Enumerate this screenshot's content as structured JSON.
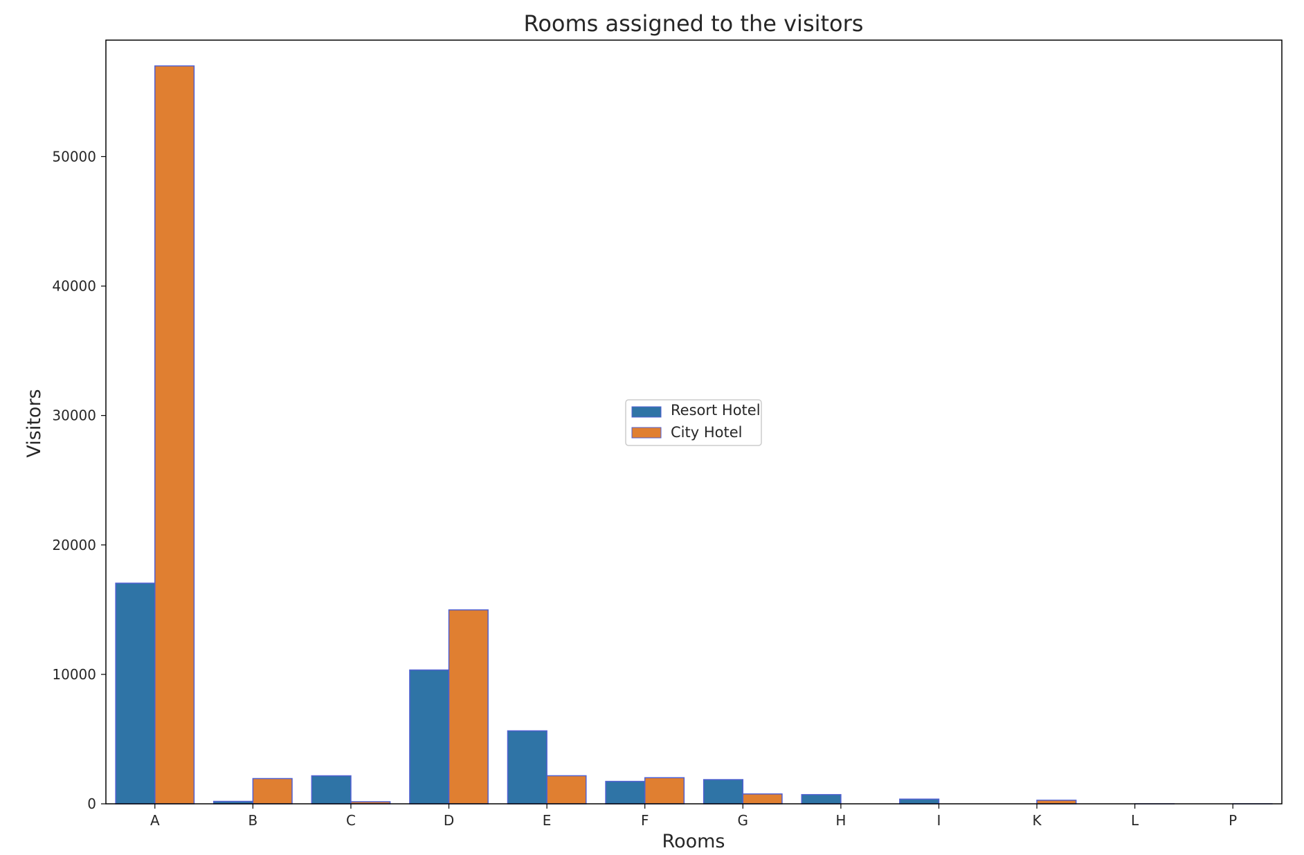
{
  "chart_data": {
    "type": "bar",
    "title": "Rooms assigned to the visitors",
    "xlabel": "Rooms",
    "ylabel": "Visitors",
    "categories": [
      "A",
      "B",
      "C",
      "D",
      "E",
      "F",
      "G",
      "H",
      "I",
      "K",
      "L",
      "P"
    ],
    "series": [
      {
        "name": "Resort Hotel",
        "color": "#2f74a6",
        "values": [
          17046,
          188,
          2165,
          10339,
          5638,
          1733,
          1869,
          712,
          363,
          0,
          0,
          0
        ]
      },
      {
        "name": "City Hotel",
        "color": "#e07f31",
        "values": [
          57007,
          1951,
          162,
          14983,
          2168,
          2017,
          763,
          0,
          0,
          279,
          1,
          2
        ]
      }
    ],
    "ylim": [
      0,
      59000
    ],
    "yticks": [
      0,
      10000,
      20000,
      30000,
      40000,
      50000
    ],
    "bar_edge_color": "#4f5fd0",
    "grid": false,
    "legend_position": "center"
  }
}
